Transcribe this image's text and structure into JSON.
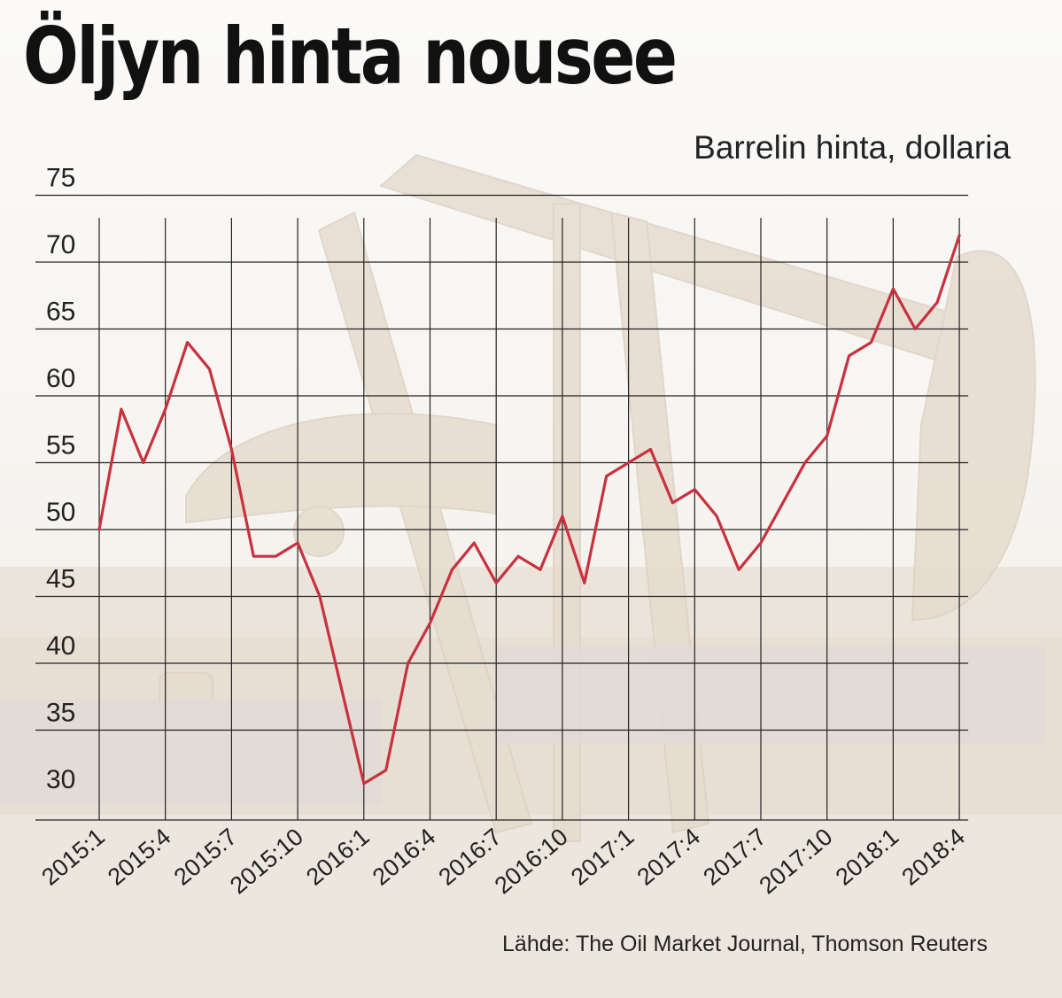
{
  "title": "Öljyn hinta nousee",
  "subtitle": "Barrelin hinta, dollaria",
  "source": "Lähde: The Oil Market Journal, Thomson Reuters",
  "colors": {
    "line": "#c8313e",
    "grid": "#222222",
    "text": "#222222"
  },
  "chart_data": {
    "type": "line",
    "title": "Öljyn hinta nousee",
    "subtitle": "Barrelin hinta, dollaria",
    "xlabel": "",
    "ylabel": "",
    "ylim": [
      28,
      75
    ],
    "yticks": [
      30,
      35,
      40,
      45,
      50,
      55,
      60,
      65,
      70,
      75
    ],
    "xtick_labels": [
      "2015:1",
      "2015:4",
      "2015:7",
      "2015:10",
      "2016:1",
      "2016:4",
      "2016:7",
      "2016:10",
      "2017:1",
      "2017:4",
      "2017:7",
      "2017:10",
      "2018:1",
      "2018:4"
    ],
    "grid": true,
    "legend": "none",
    "x": [
      "2015:1",
      "2015:2",
      "2015:3",
      "2015:4",
      "2015:5",
      "2015:6",
      "2015:7",
      "2015:8",
      "2015:9",
      "2015:10",
      "2015:11",
      "2015:12",
      "2016:1",
      "2016:2",
      "2016:3",
      "2016:4",
      "2016:5",
      "2016:6",
      "2016:7",
      "2016:8",
      "2016:9",
      "2016:10",
      "2016:11",
      "2016:12",
      "2017:1",
      "2017:2",
      "2017:3",
      "2017:4",
      "2017:5",
      "2017:6",
      "2017:7",
      "2017:8",
      "2017:9",
      "2017:10",
      "2017:11",
      "2017:12",
      "2018:1",
      "2018:2",
      "2018:3",
      "2018:4"
    ],
    "values": [
      50,
      59,
      55,
      59,
      64,
      62,
      56,
      48,
      48,
      49,
      45,
      38,
      31,
      32,
      40,
      43,
      47,
      49,
      46,
      48,
      47,
      51,
      46,
      54,
      55,
      56,
      52,
      53,
      51,
      47,
      49,
      52,
      55,
      57,
      63,
      64,
      68,
      65,
      67,
      72
    ]
  }
}
